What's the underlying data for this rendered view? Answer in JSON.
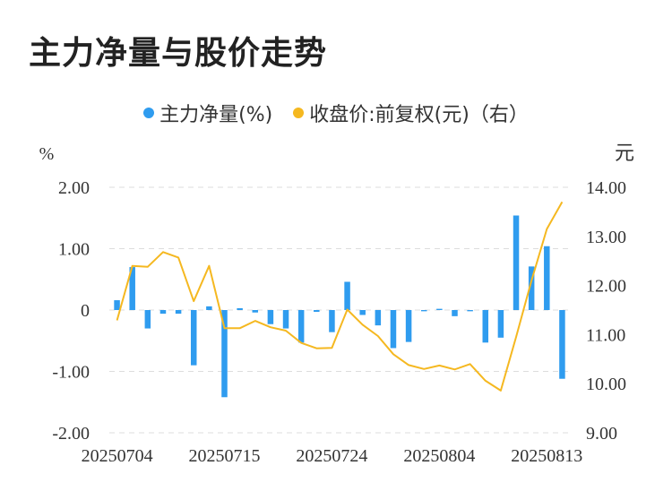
{
  "title": "主力净量与股价走势",
  "legend": {
    "series1_label": "主力净量(%)",
    "series2_label": "收盘价:前复权(元)（右）"
  },
  "colors": {
    "bar": "#2f9cef",
    "line": "#f5b820",
    "grid": "#dddddd",
    "text": "#333333"
  },
  "chart_data": {
    "type": "bar",
    "left_unit": "%",
    "right_unit": "元",
    "x_tick_labels": [
      "20250704",
      "20250715",
      "20250724",
      "20250804",
      "20250813"
    ],
    "x_tick_indices": [
      0,
      7,
      14,
      21,
      28
    ],
    "y_left": {
      "ylim": [
        -2,
        2
      ],
      "ticks": [
        2,
        1,
        0,
        -1,
        -2
      ],
      "tick_labels": [
        "2.00",
        "1.00",
        "0",
        "-1.00",
        "-2.00"
      ]
    },
    "y_right": {
      "ylim": [
        9,
        14
      ],
      "ticks": [
        14,
        13,
        12,
        11,
        10,
        9
      ],
      "tick_labels": [
        "14.00",
        "13.00",
        "12.00",
        "11.00",
        "10.00",
        "9.00"
      ]
    },
    "grid": true,
    "legend_position": "top-center",
    "series": [
      {
        "name": "主力净量(%)",
        "type": "bar",
        "axis": "left",
        "values": [
          0.16,
          0.7,
          -0.3,
          -0.06,
          -0.06,
          -0.9,
          0.06,
          -1.42,
          0.03,
          -0.04,
          -0.23,
          -0.3,
          -0.53,
          -0.03,
          -0.36,
          0.46,
          -0.08,
          -0.25,
          -0.62,
          -0.52,
          -0.02,
          0.02,
          -0.1,
          -0.02,
          -0.53,
          -0.45,
          1.54,
          0.71,
          1.04,
          -1.12
        ]
      },
      {
        "name": "收盘价:前复权(元)（右）",
        "type": "line",
        "axis": "right",
        "values": [
          11.29,
          12.4,
          12.38,
          12.68,
          12.57,
          11.68,
          12.4,
          11.13,
          11.13,
          11.28,
          11.15,
          11.08,
          10.83,
          10.72,
          10.73,
          11.51,
          11.2,
          10.97,
          10.6,
          10.38,
          10.3,
          10.37,
          10.29,
          10.4,
          10.06,
          9.86,
          10.95,
          12.1,
          13.15,
          13.7
        ]
      }
    ]
  }
}
